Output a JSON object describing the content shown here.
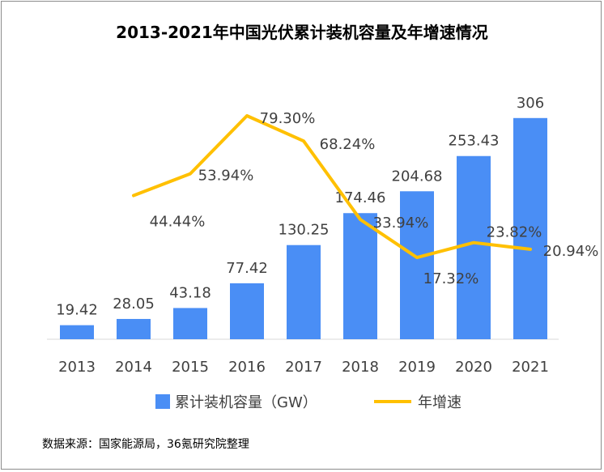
{
  "chart_data": {
    "type": "bar",
    "title": "2013-2021年中国光伏累计装机容量及年增速情况",
    "categories": [
      "2013",
      "2014",
      "2015",
      "2016",
      "2017",
      "2018",
      "2019",
      "2020",
      "2021"
    ],
    "series": [
      {
        "name": "累计装机容量（GW）",
        "type": "bar",
        "color": "#4a8ef5",
        "values": [
          19.42,
          28.05,
          43.18,
          77.42,
          130.25,
          174.46,
          204.68,
          253.43,
          306
        ],
        "labels": [
          "19.42",
          "28.05",
          "43.18",
          "77.42",
          "130.25",
          "174.46",
          "204.68",
          "253.43",
          "306"
        ]
      },
      {
        "name": "年增速",
        "type": "line",
        "color": "#ffc000",
        "values": [
          null,
          44.44,
          53.94,
          79.3,
          68.24,
          33.94,
          17.32,
          23.82,
          20.94
        ],
        "labels": [
          "",
          "44.44%",
          "53.94%",
          "79.30%",
          "68.24%",
          "33.94%",
          "17.32%",
          "23.82%",
          "20.94%"
        ]
      }
    ],
    "legend_position": "bottom",
    "grid": false,
    "source": "数据来源：国家能源局，36氪研究院整理"
  }
}
